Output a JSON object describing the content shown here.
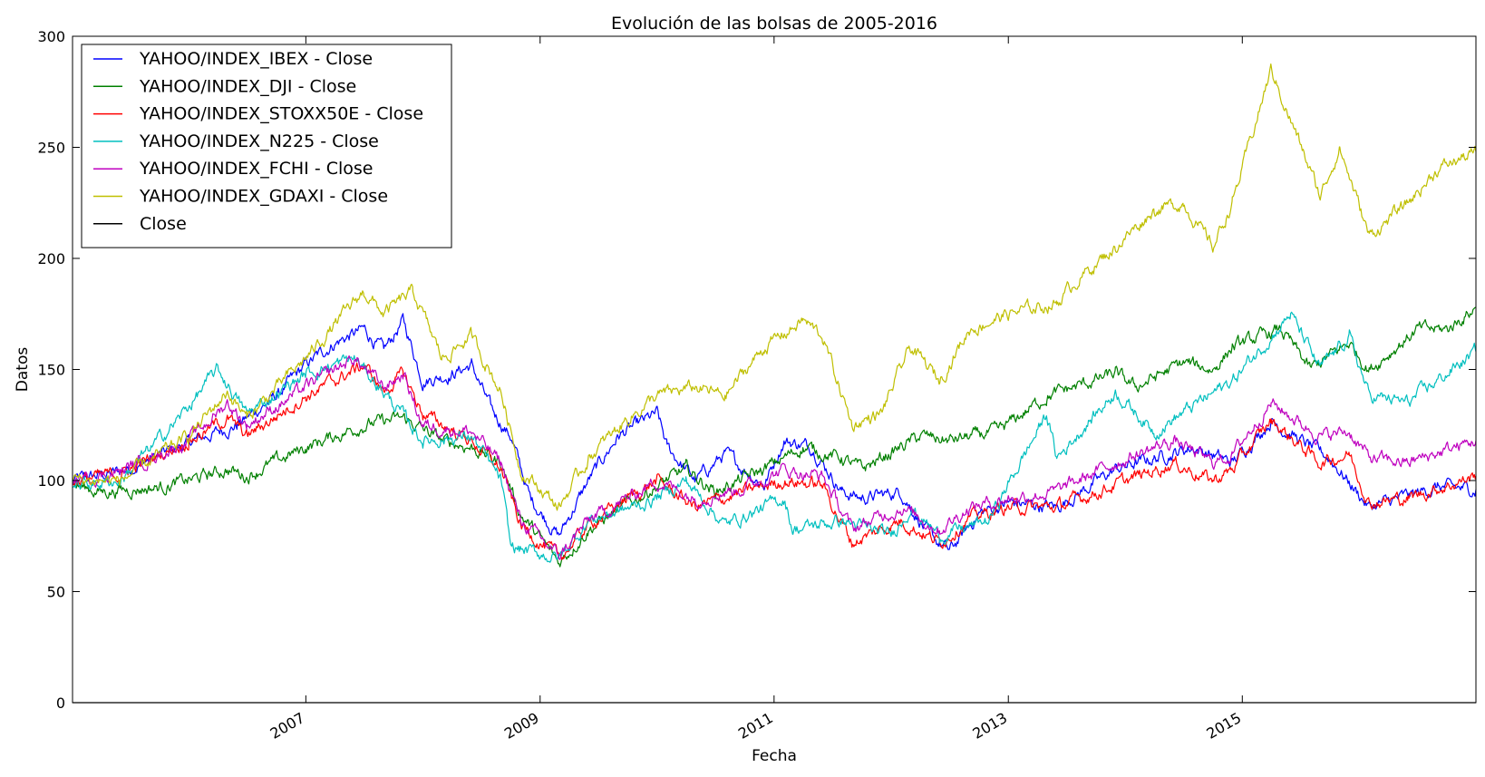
{
  "chart_data": {
    "type": "line",
    "title": "Evolución de las bolsas de 2005-2016",
    "xlabel": "Fecha",
    "ylabel": "Datos",
    "xlim": [
      "2005-01-03",
      "2016-12-30"
    ],
    "ylim": [
      0,
      300
    ],
    "yticks": [
      0,
      50,
      100,
      150,
      200,
      250,
      300
    ],
    "xticks": [
      {
        "date": "2007-01-01",
        "label": "2007"
      },
      {
        "date": "2009-01-01",
        "label": "2009"
      },
      {
        "date": "2011-01-01",
        "label": "2011"
      },
      {
        "date": "2013-01-01",
        "label": "2013"
      },
      {
        "date": "2015-01-01",
        "label": "2015"
      }
    ],
    "grid": false,
    "legend_position": "top-left",
    "series": [
      {
        "name": "YAHOO/INDEX_IBEX - Close",
        "color": "#0000ff",
        "points": [
          [
            "2005-01-03",
            100
          ],
          [
            "2005-06-01",
            104
          ],
          [
            "2006-01-01",
            117
          ],
          [
            "2006-06-01",
            125
          ],
          [
            "2006-10-01",
            138
          ],
          [
            "2007-01-01",
            152
          ],
          [
            "2007-04-01",
            162
          ],
          [
            "2007-07-01",
            168
          ],
          [
            "2007-09-01",
            158
          ],
          [
            "2007-11-01",
            172
          ],
          [
            "2008-01-01",
            145
          ],
          [
            "2008-04-01",
            148
          ],
          [
            "2008-06-01",
            152
          ],
          [
            "2008-08-01",
            132
          ],
          [
            "2008-10-01",
            120
          ],
          [
            "2008-12-01",
            92
          ],
          [
            "2009-03-01",
            75
          ],
          [
            "2009-06-01",
            100
          ],
          [
            "2009-09-01",
            120
          ],
          [
            "2010-01-01",
            130
          ],
          [
            "2010-02-01",
            115
          ],
          [
            "2010-05-01",
            100
          ],
          [
            "2010-08-01",
            112
          ],
          [
            "2010-12-01",
            98
          ],
          [
            "2011-02-01",
            118
          ],
          [
            "2011-05-01",
            115
          ],
          [
            "2011-08-01",
            95
          ],
          [
            "2011-10-01",
            92
          ],
          [
            "2012-02-01",
            95
          ],
          [
            "2012-05-01",
            75
          ],
          [
            "2012-07-01",
            68
          ],
          [
            "2012-10-01",
            85
          ],
          [
            "2013-01-01",
            90
          ],
          [
            "2013-06-01",
            88
          ],
          [
            "2013-12-01",
            105
          ],
          [
            "2014-04-01",
            110
          ],
          [
            "2014-08-01",
            115
          ],
          [
            "2014-12-01",
            108
          ],
          [
            "2015-04-01",
            127
          ],
          [
            "2015-07-01",
            118
          ],
          [
            "2015-10-01",
            110
          ],
          [
            "2016-02-01",
            88
          ],
          [
            "2016-06-01",
            93
          ],
          [
            "2016-09-01",
            97
          ],
          [
            "2016-12-30",
            96
          ]
        ]
      },
      {
        "name": "YAHOO/INDEX_DJI - Close",
        "color": "#008000",
        "points": [
          [
            "2005-01-03",
            98
          ],
          [
            "2005-04-01",
            95
          ],
          [
            "2005-10-01",
            97
          ],
          [
            "2006-01-01",
            100
          ],
          [
            "2006-05-01",
            105
          ],
          [
            "2006-07-01",
            102
          ],
          [
            "2007-01-01",
            115
          ],
          [
            "2007-07-01",
            125
          ],
          [
            "2007-11-01",
            128
          ],
          [
            "2008-03-01",
            118
          ],
          [
            "2008-06-01",
            115
          ],
          [
            "2008-09-01",
            108
          ],
          [
            "2008-11-01",
            85
          ],
          [
            "2009-03-01",
            63
          ],
          [
            "2009-06-01",
            78
          ],
          [
            "2009-12-01",
            95
          ],
          [
            "2010-04-01",
            105
          ],
          [
            "2010-07-01",
            95
          ],
          [
            "2010-12-01",
            105
          ],
          [
            "2011-04-01",
            115
          ],
          [
            "2011-08-01",
            110
          ],
          [
            "2011-10-01",
            105
          ],
          [
            "2012-04-01",
            120
          ],
          [
            "2012-07-01",
            118
          ],
          [
            "2012-12-01",
            122
          ],
          [
            "2013-05-01",
            138
          ],
          [
            "2013-12-01",
            148
          ],
          [
            "2014-02-01",
            142
          ],
          [
            "2014-07-01",
            153
          ],
          [
            "2014-10-01",
            150
          ],
          [
            "2014-12-01",
            160
          ],
          [
            "2015-05-01",
            168
          ],
          [
            "2015-08-01",
            150
          ],
          [
            "2015-12-01",
            162
          ],
          [
            "2016-02-01",
            150
          ],
          [
            "2016-07-01",
            168
          ],
          [
            "2016-10-01",
            168
          ],
          [
            "2016-12-30",
            178
          ]
        ]
      },
      {
        "name": "YAHOO/INDEX_STOXX50E - Close",
        "color": "#ff0000",
        "points": [
          [
            "2005-01-03",
            100
          ],
          [
            "2005-06-01",
            103
          ],
          [
            "2006-01-01",
            118
          ],
          [
            "2006-05-01",
            128
          ],
          [
            "2006-07-01",
            120
          ],
          [
            "2007-01-01",
            138
          ],
          [
            "2007-07-01",
            152
          ],
          [
            "2007-09-01",
            140
          ],
          [
            "2007-11-01",
            148
          ],
          [
            "2008-01-01",
            130
          ],
          [
            "2008-06-01",
            118
          ],
          [
            "2008-09-01",
            105
          ],
          [
            "2008-11-01",
            80
          ],
          [
            "2009-03-01",
            65
          ],
          [
            "2009-06-01",
            80
          ],
          [
            "2009-10-01",
            92
          ],
          [
            "2010-01-01",
            100
          ],
          [
            "2010-05-01",
            88
          ],
          [
            "2010-10-01",
            95
          ],
          [
            "2011-02-01",
            100
          ],
          [
            "2011-06-01",
            98
          ],
          [
            "2011-09-01",
            72
          ],
          [
            "2012-02-01",
            82
          ],
          [
            "2012-06-01",
            72
          ],
          [
            "2012-09-01",
            83
          ],
          [
            "2013-01-01",
            88
          ],
          [
            "2013-06-01",
            88
          ],
          [
            "2013-12-01",
            98
          ],
          [
            "2014-06-01",
            108
          ],
          [
            "2014-10-01",
            100
          ],
          [
            "2014-12-01",
            105
          ],
          [
            "2015-04-01",
            127
          ],
          [
            "2015-09-01",
            108
          ],
          [
            "2015-12-01",
            112
          ],
          [
            "2016-02-01",
            90
          ],
          [
            "2016-06-01",
            92
          ],
          [
            "2016-12-30",
            102
          ]
        ]
      },
      {
        "name": "YAHOO/INDEX_N225 - Close",
        "color": "#00bfbf",
        "points": [
          [
            "2005-01-03",
            98
          ],
          [
            "2005-06-01",
            100
          ],
          [
            "2005-12-01",
            128
          ],
          [
            "2006-04-01",
            150
          ],
          [
            "2006-07-01",
            130
          ],
          [
            "2007-01-01",
            148
          ],
          [
            "2007-06-01",
            155
          ],
          [
            "2007-09-01",
            140
          ],
          [
            "2008-01-01",
            118
          ],
          [
            "2008-06-01",
            120
          ],
          [
            "2008-09-01",
            100
          ],
          [
            "2008-10-01",
            70
          ],
          [
            "2009-03-01",
            65
          ],
          [
            "2009-06-01",
            82
          ],
          [
            "2009-12-01",
            90
          ],
          [
            "2010-04-01",
            100
          ],
          [
            "2010-08-01",
            80
          ],
          [
            "2011-02-01",
            92
          ],
          [
            "2011-03-01",
            78
          ],
          [
            "2011-08-01",
            82
          ],
          [
            "2012-01-01",
            75
          ],
          [
            "2012-03-01",
            88
          ],
          [
            "2012-06-01",
            75
          ],
          [
            "2012-11-01",
            82
          ],
          [
            "2013-05-01",
            130
          ],
          [
            "2013-06-01",
            110
          ],
          [
            "2013-12-01",
            140
          ],
          [
            "2014-04-01",
            122
          ],
          [
            "2014-12-01",
            145
          ],
          [
            "2015-06-01",
            175
          ],
          [
            "2015-09-01",
            150
          ],
          [
            "2015-12-01",
            165
          ],
          [
            "2016-02-01",
            138
          ],
          [
            "2016-06-01",
            135
          ],
          [
            "2016-12-30",
            158
          ]
        ]
      },
      {
        "name": "YAHOO/INDEX_FCHI - Close",
        "color": "#bf00bf",
        "points": [
          [
            "2005-01-03",
            100
          ],
          [
            "2005-06-01",
            104
          ],
          [
            "2006-01-01",
            118
          ],
          [
            "2006-05-01",
            135
          ],
          [
            "2006-07-01",
            125
          ],
          [
            "2007-01-01",
            142
          ],
          [
            "2007-06-01",
            155
          ],
          [
            "2007-09-01",
            142
          ],
          [
            "2007-11-01",
            148
          ],
          [
            "2008-01-01",
            125
          ],
          [
            "2008-06-01",
            122
          ],
          [
            "2008-09-01",
            108
          ],
          [
            "2008-11-01",
            82
          ],
          [
            "2009-03-01",
            66
          ],
          [
            "2009-06-01",
            82
          ],
          [
            "2009-10-01",
            92
          ],
          [
            "2010-01-01",
            100
          ],
          [
            "2010-05-01",
            92
          ],
          [
            "2010-10-01",
            97
          ],
          [
            "2011-02-01",
            105
          ],
          [
            "2011-06-01",
            102
          ],
          [
            "2011-09-01",
            78
          ],
          [
            "2012-02-01",
            88
          ],
          [
            "2012-06-01",
            78
          ],
          [
            "2012-09-01",
            88
          ],
          [
            "2013-01-01",
            92
          ],
          [
            "2013-06-01",
            95
          ],
          [
            "2013-12-01",
            108
          ],
          [
            "2014-06-01",
            118
          ],
          [
            "2014-10-01",
            108
          ],
          [
            "2014-12-01",
            112
          ],
          [
            "2015-04-01",
            135
          ],
          [
            "2015-09-01",
            120
          ],
          [
            "2015-12-01",
            122
          ],
          [
            "2016-02-01",
            110
          ],
          [
            "2016-06-01",
            108
          ],
          [
            "2016-12-30",
            118
          ]
        ]
      },
      {
        "name": "YAHOO/INDEX_GDAXI - Close",
        "color": "#bfbf00",
        "points": [
          [
            "2005-01-03",
            100
          ],
          [
            "2005-06-01",
            100
          ],
          [
            "2006-01-01",
            120
          ],
          [
            "2006-05-01",
            140
          ],
          [
            "2006-07-01",
            128
          ],
          [
            "2007-01-01",
            155
          ],
          [
            "2007-07-01",
            185
          ],
          [
            "2007-09-01",
            175
          ],
          [
            "2007-12-01",
            185
          ],
          [
            "2008-03-01",
            155
          ],
          [
            "2008-06-01",
            165
          ],
          [
            "2008-09-01",
            140
          ],
          [
            "2008-11-01",
            105
          ],
          [
            "2009-03-01",
            88
          ],
          [
            "2009-06-01",
            110
          ],
          [
            "2009-10-01",
            128
          ],
          [
            "2010-01-01",
            138
          ],
          [
            "2010-05-01",
            142
          ],
          [
            "2010-08-01",
            138
          ],
          [
            "2010-12-01",
            160
          ],
          [
            "2011-04-01",
            172
          ],
          [
            "2011-06-01",
            165
          ],
          [
            "2011-09-01",
            125
          ],
          [
            "2011-12-01",
            130
          ],
          [
            "2012-03-01",
            160
          ],
          [
            "2012-06-01",
            145
          ],
          [
            "2012-09-01",
            168
          ],
          [
            "2013-01-01",
            175
          ],
          [
            "2013-06-01",
            180
          ],
          [
            "2013-08-01",
            190
          ],
          [
            "2013-12-01",
            205
          ],
          [
            "2014-04-01",
            222
          ],
          [
            "2014-07-01",
            225
          ],
          [
            "2014-10-01",
            205
          ],
          [
            "2014-12-01",
            225
          ],
          [
            "2015-04-01",
            285
          ],
          [
            "2015-06-01",
            262
          ],
          [
            "2015-09-01",
            228
          ],
          [
            "2015-11-01",
            250
          ],
          [
            "2016-02-01",
            210
          ],
          [
            "2016-06-01",
            225
          ],
          [
            "2016-09-01",
            240
          ],
          [
            "2016-12-30",
            248
          ]
        ]
      },
      {
        "name": "Close",
        "color": "#000000",
        "points": [
          [
            "2005-01-03",
            0
          ],
          [
            "2016-12-30",
            0
          ]
        ]
      }
    ]
  }
}
